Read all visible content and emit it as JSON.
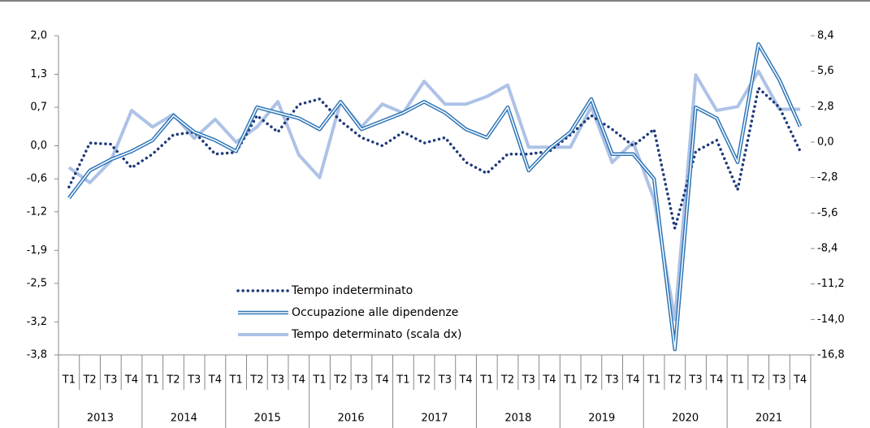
{
  "chart_data": {
    "type": "line",
    "categories": [
      "T1",
      "T2",
      "T3",
      "T4",
      "T1",
      "T2",
      "T3",
      "T4",
      "T1",
      "T2",
      "T3",
      "T4",
      "T1",
      "T2",
      "T3",
      "T4",
      "T1",
      "T2",
      "T3",
      "T4",
      "T1",
      "T2",
      "T3",
      "T4",
      "T1",
      "T2",
      "T3",
      "T4",
      "T1",
      "T2",
      "T3",
      "T4",
      "T1",
      "T2",
      "T3",
      "T4"
    ],
    "groups": [
      "2013",
      "2014",
      "2015",
      "2016",
      "2017",
      "2018",
      "2019",
      "2020",
      "2021"
    ],
    "ylim": [
      -3.8,
      2.0
    ],
    "yticks": [
      {
        "value": 2.0,
        "label": "2,0"
      },
      {
        "value": 1.3,
        "label": "1,3"
      },
      {
        "value": 0.7,
        "label": "0,7"
      },
      {
        "value": 0.0,
        "label": "0,0"
      },
      {
        "value": -0.6,
        "label": "-0,6"
      },
      {
        "value": -1.2,
        "label": "-1,2"
      },
      {
        "value": -1.9,
        "label": "-1,9"
      },
      {
        "value": -2.5,
        "label": "-2,5"
      },
      {
        "value": -3.2,
        "label": "-3,2"
      },
      {
        "value": -3.8,
        "label": "-3,8"
      }
    ],
    "y2lim": [
      -16.8,
      8.4
    ],
    "y2ticks": [
      {
        "value": 8.4,
        "label": "8,4"
      },
      {
        "value": 5.6,
        "label": "5,6"
      },
      {
        "value": 2.8,
        "label": "2,8"
      },
      {
        "value": 0.0,
        "label": "0,0"
      },
      {
        "value": -2.8,
        "label": "-2,8"
      },
      {
        "value": -5.6,
        "label": "-5,6"
      },
      {
        "value": -8.4,
        "label": "-8,4"
      },
      {
        "value": -11.2,
        "label": "-11,2"
      },
      {
        "value": -14.0,
        "label": "-14,0"
      },
      {
        "value": -16.8,
        "label": "-16,8"
      }
    ],
    "series": [
      {
        "name": "Tempo indeterminato",
        "color": "#1f3a7a",
        "style": "dotted",
        "values": [
          -0.75,
          0.05,
          0.03,
          -0.4,
          -0.15,
          0.2,
          0.25,
          -0.15,
          -0.12,
          0.55,
          0.25,
          0.75,
          0.85,
          0.45,
          0.15,
          0.0,
          0.25,
          0.05,
          0.15,
          -0.3,
          -0.5,
          -0.15,
          -0.15,
          -0.1,
          0.2,
          0.55,
          0.3,
          0.0,
          0.3,
          -1.5,
          -0.1,
          0.1,
          -0.8,
          1.05,
          0.7,
          -0.1
        ]
      },
      {
        "name": "Occupazione alle dipendenze",
        "color": "#2e75b6",
        "style": "double",
        "values": [
          -0.95,
          -0.45,
          -0.25,
          -0.1,
          0.1,
          0.55,
          0.25,
          0.1,
          -0.1,
          0.7,
          0.6,
          0.5,
          0.3,
          0.8,
          0.3,
          0.45,
          0.6,
          0.8,
          0.6,
          0.3,
          0.15,
          0.7,
          -0.45,
          -0.05,
          0.25,
          0.85,
          -0.15,
          -0.15,
          -0.6,
          -3.7,
          0.7,
          0.5,
          -0.3,
          1.85,
          1.2,
          0.35
        ]
      },
      {
        "name": "Tempo determinato (scala dx)",
        "color": "#adc2e6",
        "style": "solid",
        "axis": "y2",
        "values": [
          -2.0,
          -3.2,
          -1.5,
          2.5,
          1.2,
          2.2,
          0.3,
          1.8,
          0.0,
          1.2,
          3.2,
          -1.0,
          -2.8,
          3.2,
          1.2,
          3.0,
          2.3,
          4.8,
          3.0,
          3.0,
          3.6,
          4.5,
          -0.4,
          -0.4,
          -0.4,
          2.8,
          -1.6,
          0.0,
          -4.5,
          -14.0,
          5.3,
          2.5,
          2.8,
          5.6,
          2.6,
          2.6
        ]
      }
    ]
  }
}
